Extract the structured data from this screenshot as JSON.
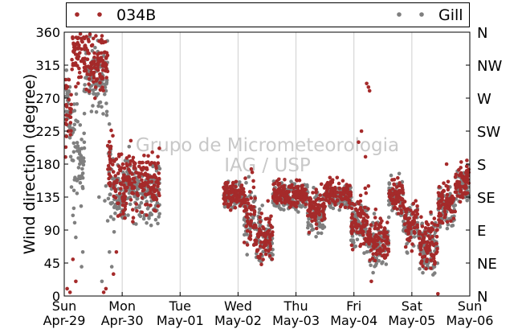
{
  "chart_data": {
    "type": "scatter",
    "title": "",
    "xlabel": "",
    "ylabel": "Wind direction (degree)",
    "ylim": [
      0,
      360
    ],
    "yticks": [
      0,
      45,
      90,
      135,
      180,
      225,
      270,
      315,
      360
    ],
    "right_axis_ticks": [
      {
        "value": 0,
        "label": "N"
      },
      {
        "value": 45,
        "label": "NE"
      },
      {
        "value": 90,
        "label": "E"
      },
      {
        "value": 135,
        "label": "SE"
      },
      {
        "value": 180,
        "label": "S"
      },
      {
        "value": 225,
        "label": "SW"
      },
      {
        "value": 270,
        "label": "W"
      },
      {
        "value": 315,
        "label": "NW"
      },
      {
        "value": 360,
        "label": "N"
      }
    ],
    "x_ticks": [
      {
        "day": "Sun",
        "date": "Apr-29"
      },
      {
        "day": "Mon",
        "date": "Apr-30"
      },
      {
        "day": "Tue",
        "date": "May-01"
      },
      {
        "day": "Wed",
        "date": "May-02"
      },
      {
        "day": "Thu",
        "date": "May-03"
      },
      {
        "day": "Fri",
        "date": "May-04"
      },
      {
        "day": "Sat",
        "date": "May-05"
      },
      {
        "day": "Sun",
        "date": "May-06"
      }
    ],
    "x_unit": "days since Sun Apr-29 00:00",
    "grid": "vertical",
    "legend_position": "top",
    "watermark": [
      "Grupo de Micrometeorologia",
      "IAG / USP"
    ],
    "series": [
      {
        "name": "034B",
        "color": "#a52a2a",
        "segments": [
          [
            0.0,
            0.12,
            250,
            40
          ],
          [
            0.12,
            0.35,
            330,
            40
          ],
          [
            0.35,
            0.55,
            320,
            35
          ],
          [
            0.55,
            0.75,
            320,
            30
          ],
          [
            0.75,
            0.85,
            180,
            40
          ],
          [
            0.85,
            1.05,
            150,
            45
          ],
          [
            1.05,
            1.25,
            160,
            40
          ],
          [
            1.25,
            1.65,
            155,
            35
          ],
          [
            2.75,
            3.1,
            140,
            15
          ],
          [
            3.1,
            3.3,
            110,
            40
          ],
          [
            3.3,
            3.6,
            80,
            30
          ],
          [
            3.6,
            4.2,
            140,
            15
          ],
          [
            4.2,
            4.5,
            120,
            25
          ],
          [
            4.5,
            4.95,
            140,
            15
          ],
          [
            4.95,
            5.25,
            100,
            30
          ],
          [
            5.25,
            5.6,
            75,
            25
          ],
          [
            5.6,
            5.85,
            140,
            20
          ],
          [
            5.85,
            6.1,
            100,
            25
          ],
          [
            6.1,
            6.45,
            75,
            30
          ],
          [
            6.45,
            6.75,
            125,
            25
          ],
          [
            6.75,
            7.0,
            155,
            20
          ]
        ],
        "points": [
          [
            5.22,
            290
          ],
          [
            5.25,
            285
          ],
          [
            5.27,
            280
          ],
          [
            5.13,
            225
          ],
          [
            5.08,
            210
          ],
          [
            5.2,
            190
          ],
          [
            5.25,
            150
          ],
          [
            0.05,
            10
          ],
          [
            0.1,
            5
          ],
          [
            0.15,
            50
          ],
          [
            0.2,
            20
          ],
          [
            0.68,
            5
          ],
          [
            0.72,
            10
          ],
          [
            0.85,
            30
          ],
          [
            0.9,
            60
          ],
          [
            5.3,
            20
          ],
          [
            6.45,
            3
          ],
          [
            6.6,
            180
          ],
          [
            6.95,
            185
          ]
        ]
      },
      {
        "name": "Gill",
        "color": "#7f7f7f",
        "segments": [
          [
            0.0,
            0.12,
            255,
            40
          ],
          [
            0.1,
            0.35,
            200,
            60
          ],
          [
            0.35,
            0.55,
            300,
            40
          ],
          [
            0.55,
            0.75,
            300,
            40
          ],
          [
            0.75,
            0.85,
            160,
            60
          ],
          [
            0.85,
            1.05,
            140,
            40
          ],
          [
            1.05,
            1.25,
            150,
            35
          ],
          [
            1.25,
            1.65,
            140,
            35
          ],
          [
            2.75,
            3.1,
            135,
            15
          ],
          [
            3.1,
            3.3,
            105,
            40
          ],
          [
            3.3,
            3.6,
            80,
            30
          ],
          [
            3.6,
            4.2,
            135,
            15
          ],
          [
            4.2,
            4.5,
            115,
            25
          ],
          [
            4.5,
            4.95,
            135,
            15
          ],
          [
            4.95,
            5.25,
            95,
            30
          ],
          [
            5.25,
            5.6,
            70,
            25
          ],
          [
            5.6,
            5.85,
            135,
            20
          ],
          [
            5.85,
            6.1,
            95,
            25
          ],
          [
            6.1,
            6.45,
            70,
            30
          ],
          [
            6.45,
            6.75,
            120,
            25
          ],
          [
            6.75,
            7.0,
            150,
            20
          ]
        ],
        "points": [
          [
            0.15,
            110
          ],
          [
            0.18,
            100
          ],
          [
            0.2,
            80
          ],
          [
            0.22,
            140
          ],
          [
            0.25,
            160
          ],
          [
            0.3,
            40
          ],
          [
            0.32,
            60
          ],
          [
            0.65,
            20
          ],
          [
            0.7,
            130
          ],
          [
            0.72,
            150
          ],
          [
            0.78,
            60
          ],
          [
            0.82,
            40
          ],
          [
            0.95,
            120
          ],
          [
            0.6,
            135
          ]
        ]
      }
    ]
  }
}
